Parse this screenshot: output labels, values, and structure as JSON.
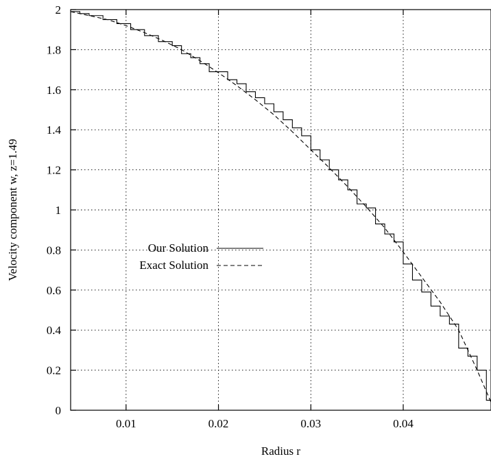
{
  "chart_data": {
    "type": "line",
    "title": "",
    "xlabel": "Radius r",
    "ylabel": "Velocity component w, z=1.49",
    "xlim": [
      0.004,
      0.0495
    ],
    "ylim": [
      0,
      2
    ],
    "xticks": [
      0.01,
      0.02,
      0.03,
      0.04
    ],
    "xtick_labels": [
      "0.01",
      "0.02",
      "0.03",
      "0.04"
    ],
    "yticks": [
      0,
      0.2,
      0.4,
      0.6,
      0.8,
      1,
      1.2,
      1.4,
      1.6,
      1.8,
      2
    ],
    "ytick_labels": [
      "0",
      "0.2",
      "0.4",
      "0.6",
      "0.8",
      "1",
      "1.2",
      "1.4",
      "1.6",
      "1.8",
      "2"
    ],
    "grid": true,
    "legend_position": "middle-left",
    "series": [
      {
        "name": "Our Solution",
        "style": "solid-step",
        "x": [
          0.004,
          0.005,
          0.006,
          0.0075,
          0.009,
          0.0105,
          0.012,
          0.0135,
          0.015,
          0.016,
          0.017,
          0.018,
          0.019,
          0.02,
          0.021,
          0.022,
          0.023,
          0.024,
          0.025,
          0.026,
          0.027,
          0.028,
          0.029,
          0.03,
          0.031,
          0.032,
          0.033,
          0.034,
          0.035,
          0.036,
          0.037,
          0.038,
          0.039,
          0.04,
          0.041,
          0.042,
          0.043,
          0.044,
          0.045,
          0.046,
          0.047,
          0.048,
          0.049,
          0.0495
        ],
        "y": [
          1.99,
          1.98,
          1.97,
          1.95,
          1.93,
          1.9,
          1.87,
          1.84,
          1.82,
          1.78,
          1.76,
          1.73,
          1.69,
          1.69,
          1.65,
          1.63,
          1.59,
          1.56,
          1.53,
          1.49,
          1.45,
          1.41,
          1.37,
          1.3,
          1.25,
          1.2,
          1.15,
          1.1,
          1.03,
          1.01,
          0.93,
          0.88,
          0.84,
          0.73,
          0.65,
          0.59,
          0.52,
          0.47,
          0.43,
          0.31,
          0.27,
          0.2,
          0.05,
          0.04
        ]
      },
      {
        "name": "Exact Solution",
        "style": "dashed",
        "x": [
          0.004,
          0.006,
          0.008,
          0.01,
          0.012,
          0.014,
          0.016,
          0.018,
          0.02,
          0.022,
          0.024,
          0.026,
          0.028,
          0.03,
          0.032,
          0.034,
          0.036,
          0.038,
          0.04,
          0.042,
          0.044,
          0.046,
          0.048,
          0.0495
        ],
        "y": [
          1.99,
          1.97,
          1.95,
          1.92,
          1.885,
          1.845,
          1.8,
          1.745,
          1.685,
          1.62,
          1.55,
          1.475,
          1.39,
          1.3,
          1.21,
          1.115,
          1.015,
          0.91,
          0.79,
          0.665,
          0.54,
          0.4,
          0.2,
          0.04
        ]
      }
    ]
  }
}
